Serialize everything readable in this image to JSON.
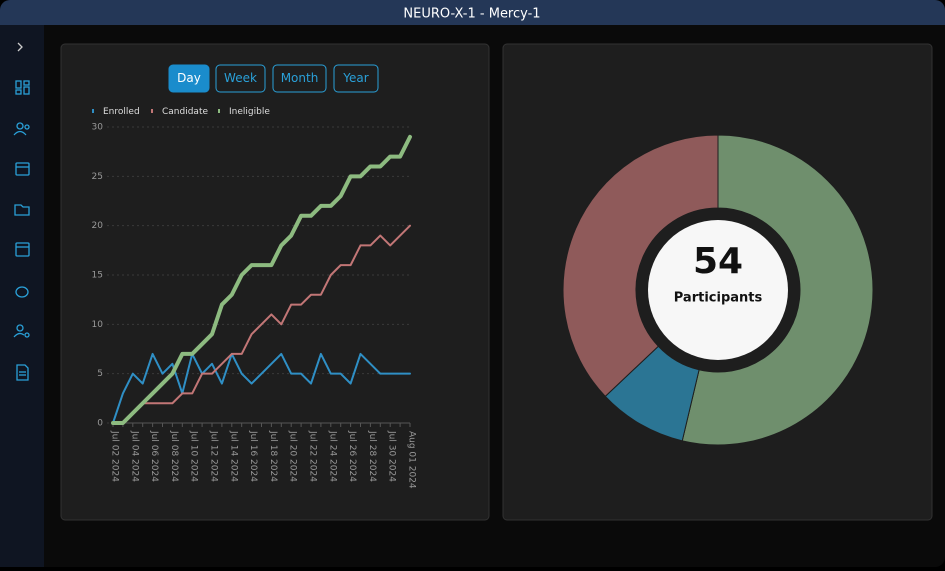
{
  "window": {
    "title": "NEURO-X-1 - Mercy-1"
  },
  "range_buttons": {
    "labels": [
      "Day",
      "Week",
      "Month",
      "Year"
    ],
    "active": 0
  },
  "chart_data": [
    {
      "type": "line",
      "categories": [
        "Jul 02 2024",
        null,
        "Jul 04 2024",
        null,
        "Jul 06 2024",
        null,
        "Jul 08 2024",
        null,
        "Jul 10 2024",
        null,
        "Jul 12 2024",
        null,
        "Jul 14 2024",
        null,
        "Jul 16 2024",
        null,
        "Jul 18 2024",
        null,
        "Jul 20 2024",
        null,
        "Jul 22 2024",
        null,
        "Jul 24 2024",
        null,
        "Jul 26 2024",
        null,
        "Jul 28 2024",
        null,
        "Jul 30 2024",
        null,
        "Aug 01 2024"
      ],
      "series": [
        {
          "name": "Enrolled",
          "color": "#2f8fc5",
          "values": [
            0,
            3,
            5,
            4,
            7,
            5,
            6,
            3,
            7,
            5,
            6,
            4,
            7,
            5,
            4,
            5,
            6,
            7,
            5,
            5,
            4,
            7,
            5,
            5,
            4,
            7,
            6,
            5,
            5,
            5,
            5
          ]
        },
        {
          "name": "Candidate",
          "color": "#c27676",
          "values": [
            0,
            0,
            1,
            2,
            2,
            2,
            2,
            3,
            3,
            5,
            5,
            6,
            7,
            7,
            9,
            10,
            11,
            10,
            12,
            12,
            13,
            13,
            15,
            16,
            16,
            18,
            18,
            19,
            18,
            19,
            20
          ]
        },
        {
          "name": "Ineligible",
          "color": "#8dbb80",
          "values": [
            0,
            0,
            1,
            2,
            3,
            4,
            5,
            7,
            7,
            8,
            9,
            12,
            13,
            15,
            16,
            16,
            16,
            18,
            19,
            21,
            21,
            22,
            22,
            23,
            25,
            25,
            26,
            26,
            27,
            27,
            29
          ]
        }
      ],
      "ylim": [
        0,
        30
      ],
      "yticks": [
        0,
        5,
        10,
        15,
        20,
        25,
        30
      ],
      "grid": true
    },
    {
      "type": "donut",
      "values": [
        29,
        5,
        20
      ],
      "colors": [
        "#6f8f6d",
        "#2b7594",
        "#8f5a5a"
      ],
      "center_value": 54,
      "center_label": "Participants"
    }
  ]
}
